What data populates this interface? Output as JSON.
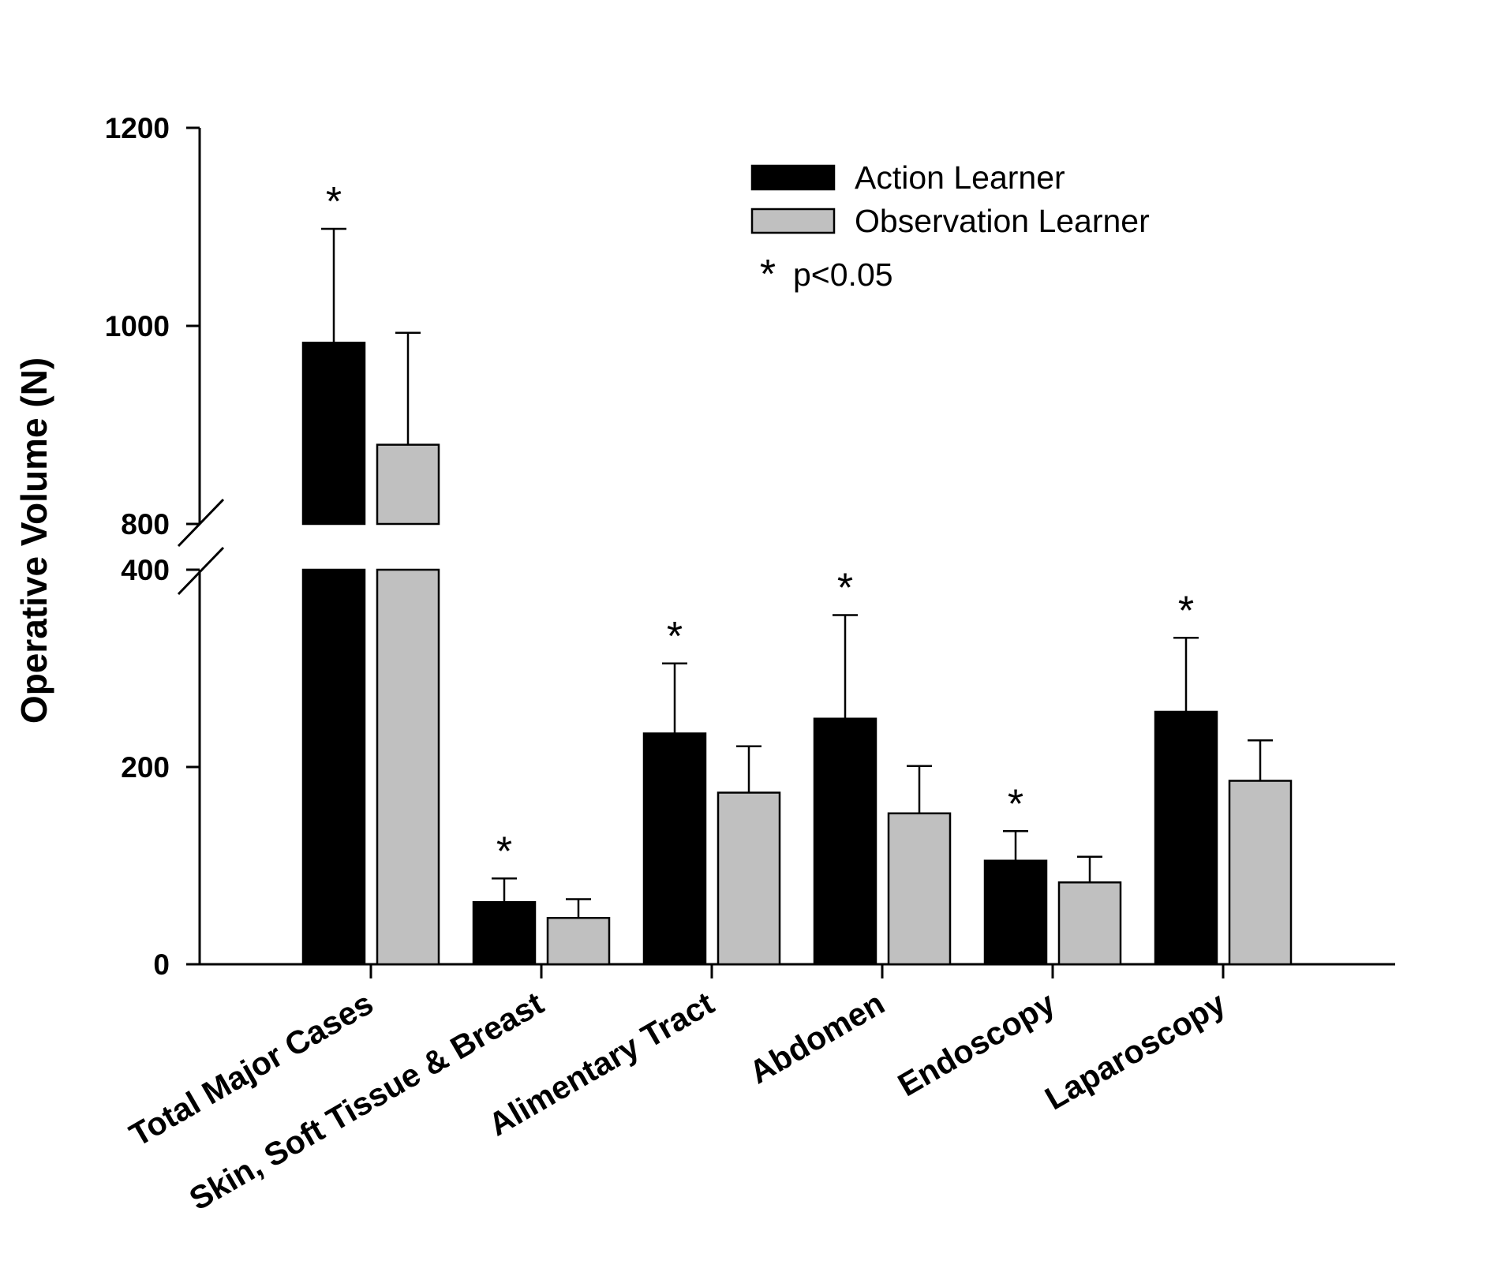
{
  "chart_data": {
    "type": "bar",
    "ylabel": "Operative Volume (N)",
    "xlabel": "",
    "categories": [
      "Total Major Cases",
      "Skin, Soft Tissue & Breast",
      "Alimentary Tract",
      "Abdomen",
      "Endoscopy",
      "Laparoscopy"
    ],
    "series": [
      {
        "name": "Action Learner",
        "color": "#000000",
        "values": [
          983,
          63,
          234,
          249,
          105,
          256
        ],
        "errors": [
          115,
          24,
          71,
          105,
          30,
          75
        ]
      },
      {
        "name": "Observation Learner",
        "color": "#c0c0c0",
        "values": [
          880,
          47,
          174,
          153,
          83,
          186
        ],
        "errors": [
          113,
          19,
          47,
          48,
          26,
          41
        ]
      }
    ],
    "significant": [
      true,
      true,
      true,
      true,
      true,
      true
    ],
    "axis_break": {
      "lower_max": 400,
      "upper_min": 800
    },
    "yticks": [
      0,
      200,
      400,
      800,
      1000,
      1200
    ],
    "ylim": [
      0,
      1200
    ],
    "legend": {
      "placement": "top-right",
      "significance_symbol": "*",
      "significance_label": "p<0.05"
    }
  }
}
